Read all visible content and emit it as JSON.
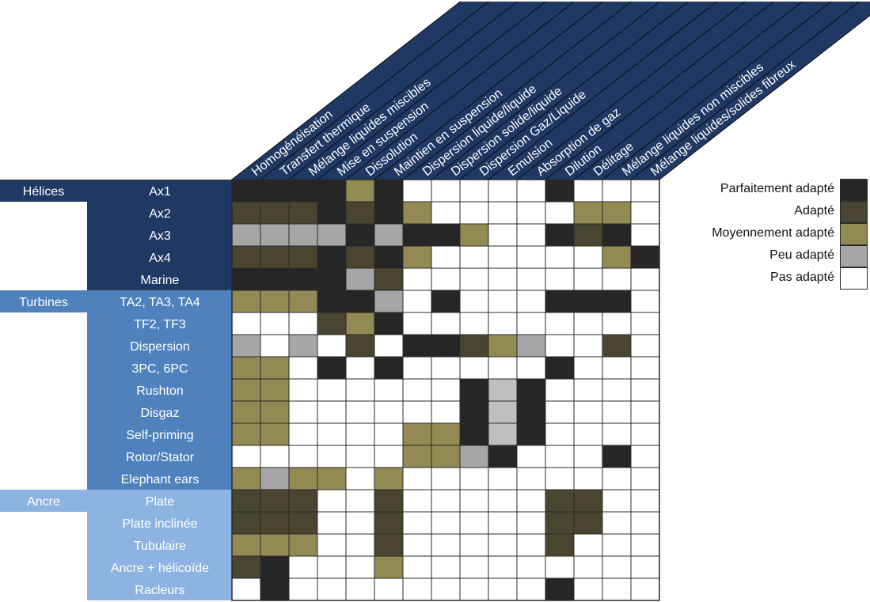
{
  "chart_data": {
    "type": "heatmap",
    "columns": [
      "Homogénéisation",
      "Transfert thermique",
      "Mélange liquides miscibles",
      "Mise en suspension",
      "Dissolution",
      "Maintien en suspension",
      "Dispersion liquide/liquide",
      "Dispersion solide/liquide",
      "Dispersion Gaz/Liquide",
      "Emulsion",
      "Absorption de gaz",
      "Dilution",
      "Délitage",
      "Mélange liquides non miscibles",
      "Mélange liquides/solides fibreux"
    ],
    "groups": [
      {
        "name": "Hélices",
        "rows": [
          "Ax1",
          "Ax2",
          "Ax3",
          "Ax4",
          "Marine"
        ]
      },
      {
        "name": "Turbines",
        "rows": [
          "TA2, TA3, TA4",
          "TF2, TF3",
          "Dispersion",
          "3PC, 6PC",
          "Rushton",
          "Disgaz",
          "Self-priming",
          "Rotor/Stator",
          "Elephant ears"
        ]
      },
      {
        "name": "Ancre",
        "rows": [
          "Plate",
          "Plate inclinée",
          "Tubulaire",
          "Ancre + hélicoïde",
          "Racleurs"
        ]
      }
    ],
    "scale": [
      "Pas adapté",
      "Peu adapté",
      "Moyennement adapté",
      "Adapté",
      "Parfaitement adapté"
    ],
    "matrix": [
      [
        4,
        4,
        4,
        4,
        2,
        4,
        0,
        0,
        0,
        0,
        0,
        4,
        0,
        0,
        0
      ],
      [
        3,
        3,
        3,
        4,
        3,
        4,
        2,
        0,
        0,
        0,
        0,
        0,
        2,
        2,
        0
      ],
      [
        1,
        1,
        1,
        1,
        4,
        1,
        4,
        4,
        2,
        0,
        0,
        4,
        3,
        4,
        0
      ],
      [
        3,
        3,
        3,
        4,
        3,
        4,
        2,
        0,
        0,
        0,
        0,
        0,
        0,
        2,
        4
      ],
      [
        4,
        4,
        4,
        4,
        1,
        3,
        0,
        0,
        0,
        0,
        0,
        0,
        0,
        0,
        0
      ],
      [
        2,
        2,
        2,
        4,
        4,
        1,
        0,
        4,
        0,
        0,
        0,
        4,
        4,
        4,
        0
      ],
      [
        0,
        0,
        0,
        3,
        2,
        4,
        0,
        0,
        0,
        0,
        0,
        0,
        0,
        0,
        0
      ],
      [
        1,
        0,
        1,
        0,
        3,
        0,
        4,
        4,
        3,
        2,
        1,
        0,
        0,
        3,
        0
      ],
      [
        2,
        2,
        0,
        4,
        0,
        4,
        0,
        0,
        0,
        0,
        0,
        4,
        0,
        0,
        0
      ],
      [
        2,
        2,
        0,
        0,
        0,
        0,
        0,
        0,
        4,
        1,
        4,
        0,
        0,
        0,
        0
      ],
      [
        2,
        2,
        0,
        0,
        0,
        0,
        0,
        0,
        4,
        1,
        4,
        0,
        0,
        0,
        0
      ],
      [
        2,
        2,
        0,
        0,
        0,
        0,
        2,
        2,
        4,
        1,
        4,
        0,
        0,
        0,
        0
      ],
      [
        0,
        0,
        0,
        0,
        0,
        0,
        2,
        2,
        1,
        4,
        0,
        0,
        0,
        4,
        0
      ],
      [
        2,
        1,
        2,
        2,
        0,
        2,
        0,
        0,
        0,
        0,
        0,
        0,
        0,
        0,
        0
      ],
      [
        3,
        3,
        3,
        0,
        0,
        3,
        0,
        0,
        0,
        0,
        0,
        3,
        3,
        0,
        0
      ],
      [
        3,
        3,
        3,
        0,
        0,
        3,
        0,
        0,
        0,
        0,
        0,
        3,
        3,
        0,
        0
      ],
      [
        2,
        2,
        2,
        0,
        0,
        3,
        0,
        0,
        0,
        0,
        0,
        3,
        0,
        0,
        0
      ],
      [
        3,
        4,
        0,
        0,
        0,
        2,
        0,
        0,
        0,
        0,
        0,
        0,
        0,
        0,
        0
      ],
      [
        0,
        4,
        0,
        0,
        0,
        0,
        0,
        0,
        0,
        0,
        0,
        4,
        0,
        0,
        0
      ]
    ]
  },
  "legend": [
    {
      "label": "Parfaitement adapté",
      "level": 4
    },
    {
      "label": "Adapté",
      "level": 3
    },
    {
      "label": "Moyennement adapté",
      "level": 2
    },
    {
      "label": "Peu adapté",
      "level": 1
    },
    {
      "label": "Pas adapté",
      "level": 0
    }
  ],
  "colors": {
    "level_0": "#ffffff",
    "level_1": "#a6a6a6",
    "level_2": "#938953",
    "level_3": "#4a4530",
    "level_4": "#262626",
    "level_1_light": "#bfbfbf",
    "header_band": "#1f3864",
    "helices": "#1f3864",
    "turbines": "#4f81bd",
    "ancre": "#8db3e2",
    "grid_line": "#2b2b2b"
  }
}
